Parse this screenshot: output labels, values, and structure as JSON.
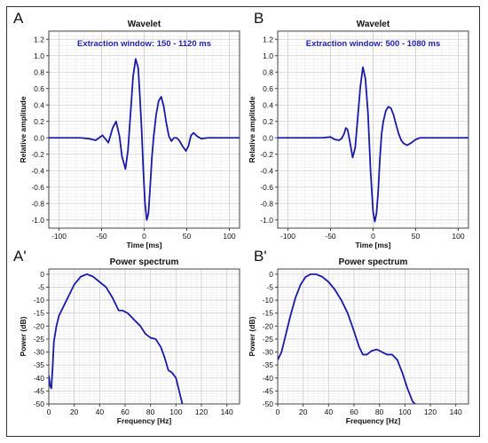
{
  "chart_data": [
    {
      "panel_letter": "A",
      "type": "line",
      "title": "Wavelet",
      "annotation": "Extraction window: 150 - 1120 ms",
      "xlabel": "Time [ms]",
      "ylabel": "Relative amplitude",
      "xlim": [
        -112,
        112
      ],
      "ylim": [
        -1.1,
        1.3
      ],
      "xticks": [
        -100,
        -50,
        0,
        50,
        100
      ],
      "yticks": [
        1.2,
        1.0,
        0.8,
        0.6,
        0.4,
        0.2,
        0.0,
        -0.2,
        -0.4,
        -0.6,
        -0.8,
        -1.0
      ],
      "ytick_labels": [
        "1.2",
        "1.0",
        "0.8",
        "0.6",
        "0.4",
        "0.2",
        "0.0",
        "-0.2",
        "-0.4",
        "-0.6",
        "-0.8",
        "-1.0"
      ],
      "grid": true,
      "series": [
        {
          "color": "#1a1aa8",
          "x": [
            -112,
            -75,
            -65,
            -57,
            -53,
            -49,
            -45,
            -42,
            -37,
            -33,
            -29,
            -26,
            -22,
            -19,
            -16,
            -13,
            -10,
            -7,
            -5,
            -3,
            -1,
            1,
            3,
            5,
            7,
            9,
            11,
            14,
            17,
            20,
            23,
            26,
            29,
            32,
            35,
            38,
            41,
            45,
            49,
            52,
            55,
            58,
            62,
            67,
            75,
            85,
            100,
            112
          ],
          "y": [
            0.0,
            0.0,
            -0.01,
            -0.03,
            0.0,
            0.03,
            -0.02,
            -0.06,
            0.12,
            0.2,
            0.02,
            -0.23,
            -0.38,
            -0.15,
            0.3,
            0.75,
            0.96,
            0.85,
            0.5,
            0.1,
            -0.4,
            -0.8,
            -1.0,
            -0.92,
            -0.6,
            -0.25,
            0.0,
            0.28,
            0.45,
            0.5,
            0.38,
            0.18,
            0.02,
            -0.04,
            0.0,
            0.0,
            -0.03,
            -0.1,
            -0.16,
            -0.1,
            0.03,
            0.06,
            0.02,
            -0.01,
            0.0,
            0.0,
            0.0,
            0.0
          ]
        }
      ]
    },
    {
      "panel_letter": "B",
      "type": "line",
      "title": "Wavelet",
      "annotation": "Extraction window: 500 - 1080 ms",
      "xlabel": "Time [ms]",
      "ylabel": "Relative amplitude",
      "xlim": [
        -112,
        112
      ],
      "ylim": [
        -1.1,
        1.3
      ],
      "xticks": [
        -100,
        -50,
        0,
        50,
        100
      ],
      "yticks": [
        1.2,
        1.0,
        0.8,
        0.6,
        0.4,
        0.2,
        0.0,
        -0.2,
        -0.4,
        -0.6,
        -0.8,
        -1.0
      ],
      "ytick_labels": [
        "1.2",
        "1.0",
        "0.8",
        "0.6",
        "0.4",
        "0.2",
        "0.0",
        "-0.2",
        "-0.4",
        "-0.6",
        "-0.8",
        "-1.0"
      ],
      "grid": true,
      "series": [
        {
          "color": "#1a1aa8",
          "x": [
            -112,
            -70,
            -60,
            -50,
            -45,
            -40,
            -37,
            -34,
            -32,
            -30,
            -27,
            -24,
            -21,
            -18,
            -15,
            -12,
            -9,
            -6,
            -3,
            0,
            2,
            4,
            6,
            8,
            10,
            12,
            15,
            18,
            21,
            24,
            27,
            30,
            33,
            36,
            40,
            45,
            50,
            55,
            60,
            70,
            85,
            100,
            112
          ],
          "y": [
            0.0,
            0.0,
            0.0,
            0.01,
            -0.02,
            -0.03,
            -0.01,
            0.05,
            0.12,
            0.1,
            -0.06,
            -0.24,
            -0.12,
            0.25,
            0.62,
            0.86,
            0.72,
            0.3,
            -0.4,
            -0.9,
            -1.02,
            -0.92,
            -0.65,
            -0.25,
            0.05,
            0.2,
            0.33,
            0.38,
            0.36,
            0.28,
            0.16,
            0.05,
            -0.03,
            -0.07,
            -0.09,
            -0.06,
            -0.02,
            0.0,
            0.0,
            0.0,
            0.0,
            0.0,
            0.0
          ]
        }
      ]
    },
    {
      "panel_letter": "A'",
      "type": "line",
      "title": "Power spectrum",
      "xlabel": "Frequency [Hz]",
      "ylabel": "Power (dB)",
      "xlim": [
        0,
        150
      ],
      "ylim": [
        -50,
        2
      ],
      "xticks": [
        0,
        20,
        40,
        60,
        80,
        100,
        120,
        140
      ],
      "yticks": [
        0,
        -5,
        -10,
        -15,
        -20,
        -25,
        -30,
        -35,
        -40,
        -45,
        -50
      ],
      "grid": true,
      "series": [
        {
          "color": "#1a1aa8",
          "x": [
            0,
            1,
            2,
            3,
            4,
            6,
            8,
            12,
            16,
            20,
            25,
            30,
            35,
            40,
            45,
            50,
            55,
            58,
            62,
            68,
            72,
            76,
            80,
            84,
            88,
            91,
            94,
            97,
            100,
            103,
            105
          ],
          "y": [
            -39,
            -43,
            -44,
            -36,
            -26,
            -20,
            -16,
            -12,
            -8,
            -4,
            -1,
            0,
            -1,
            -3,
            -5,
            -9,
            -14,
            -14,
            -15,
            -18,
            -20,
            -23,
            -24.5,
            -25,
            -28,
            -32,
            -37,
            -38,
            -40,
            -46,
            -50
          ]
        }
      ]
    },
    {
      "panel_letter": "B'",
      "type": "line",
      "title": "Power spectrum",
      "xlabel": "Frequency [Hz]",
      "ylabel": "Power (dB)",
      "xlim": [
        0,
        150
      ],
      "ylim": [
        -50,
        2
      ],
      "xticks": [
        0,
        20,
        40,
        60,
        80,
        100,
        120,
        140
      ],
      "yticks": [
        0,
        -5,
        -10,
        -15,
        -20,
        -25,
        -30,
        -35,
        -40,
        -45,
        -50
      ],
      "grid": true,
      "series": [
        {
          "color": "#1a1aa8",
          "x": [
            0,
            3,
            6,
            10,
            14,
            18,
            22,
            26,
            30,
            35,
            40,
            45,
            50,
            55,
            60,
            64,
            67,
            70,
            74,
            78,
            82,
            86,
            90,
            94,
            98,
            102,
            106,
            108
          ],
          "y": [
            -33,
            -30,
            -24,
            -16,
            -9,
            -4,
            -1,
            0,
            0,
            -1,
            -3,
            -6,
            -10,
            -15,
            -22,
            -28,
            -31,
            -31,
            -29.5,
            -29,
            -30,
            -31,
            -31,
            -33,
            -38,
            -44,
            -49,
            -50
          ]
        }
      ]
    }
  ]
}
